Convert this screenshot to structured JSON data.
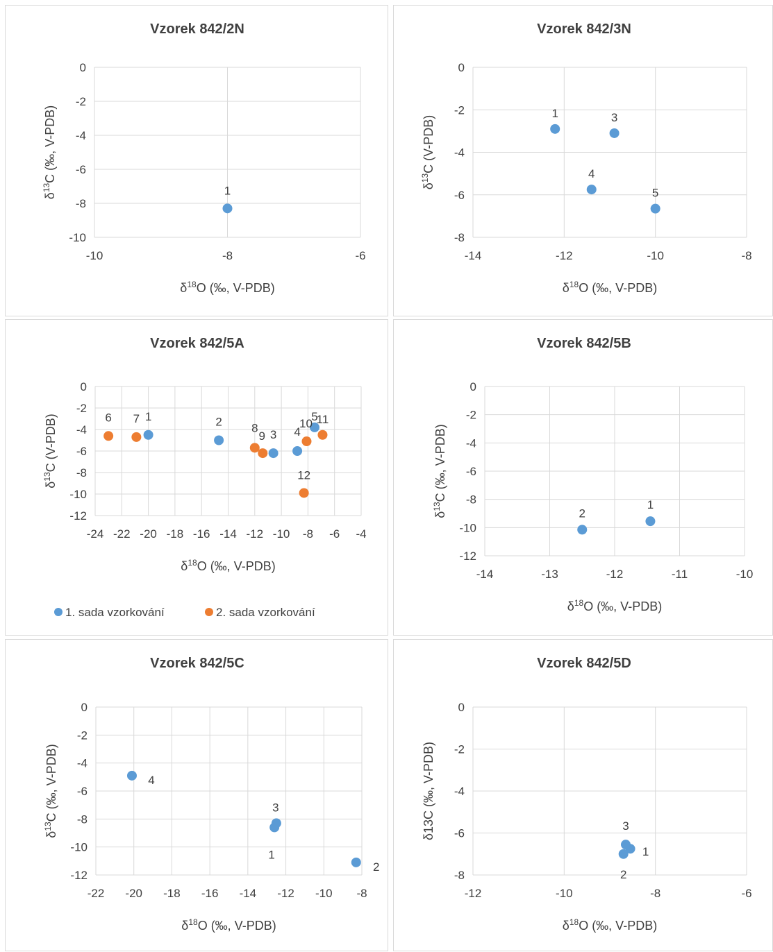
{
  "colors": {
    "series1": "#5b9bd5",
    "series2": "#ed7d31",
    "grid": "#d9d9d9",
    "text": "#404040"
  },
  "chart_data": [
    {
      "type": "scatter",
      "title": "Vzorek 842/2N",
      "xlabel": "δ18O (‰, V-PDB)",
      "ylabel": "δ13C (‰, V-PDB)",
      "xlim": [
        -10,
        -6
      ],
      "ylim": [
        -10,
        0
      ],
      "xticks": [
        -10,
        -8,
        -6
      ],
      "yticks": [
        0,
        -2,
        -4,
        -6,
        -8,
        -10
      ],
      "xtick_labels": [
        "-10",
        "-8",
        "-6"
      ],
      "ytick_labels": [
        "0",
        "-2",
        "-4",
        "-6",
        "-8",
        "-10"
      ],
      "series": [
        {
          "points": [
            {
              "x": -8.0,
              "y": -8.3,
              "label": "1"
            }
          ]
        }
      ]
    },
    {
      "type": "scatter",
      "title": "Vzorek 842/3N",
      "xlabel": "δ18O (‰, V-PDB)",
      "ylabel": "δ13C (V-PDB)",
      "xlim": [
        -14,
        -8
      ],
      "ylim": [
        -8,
        0
      ],
      "xticks": [
        -14,
        -12,
        -10,
        -8
      ],
      "yticks": [
        0,
        -2,
        -4,
        -6,
        -8
      ],
      "xtick_labels": [
        "-14",
        "-12",
        "-10",
        "-8"
      ],
      "ytick_labels": [
        "0",
        "-2",
        "-4",
        "-6",
        "-8"
      ],
      "series": [
        {
          "points": [
            {
              "x": -12.2,
              "y": -2.9,
              "label": "1"
            },
            {
              "x": -10.9,
              "y": -3.1,
              "label": "3"
            },
            {
              "x": -11.4,
              "y": -5.75,
              "label": "4"
            },
            {
              "x": -10.0,
              "y": -6.65,
              "label": "5"
            }
          ]
        }
      ]
    },
    {
      "type": "scatter",
      "title": "Vzorek 842/5A",
      "xlabel": "δ18O (‰, V-PDB)",
      "ylabel": "δ13C (V-PDB)",
      "xlim": [
        -24,
        -4
      ],
      "ylim": [
        -12,
        0
      ],
      "xticks": [
        -24,
        -22,
        -20,
        -18,
        -16,
        -14,
        -12,
        -10,
        -8,
        -6,
        -4
      ],
      "yticks": [
        0,
        -2,
        -4,
        -6,
        -8,
        -10,
        -12
      ],
      "xtick_labels": [
        "-24",
        "-22",
        "-20",
        "-18",
        "-16",
        "-14",
        "-12",
        "-10",
        "-8",
        "-6",
        "-4"
      ],
      "ytick_labels": [
        "0",
        "-2",
        "-4",
        "-6",
        "-8",
        "-10",
        "-12"
      ],
      "legend": "bottom",
      "series": [
        {
          "name": "1. sada vzorkování",
          "points": [
            {
              "x": -20.0,
              "y": -4.5,
              "label": "1"
            },
            {
              "x": -14.7,
              "y": -5.0,
              "label": "2"
            },
            {
              "x": -10.6,
              "y": -6.2,
              "label": "3"
            },
            {
              "x": -8.8,
              "y": -6.0,
              "label": "4"
            },
            {
              "x": -7.5,
              "y": -3.8,
              "label": "5"
            }
          ]
        },
        {
          "name": "2. sada vzorkování",
          "points": [
            {
              "x": -23.0,
              "y": -4.6,
              "label": "6"
            },
            {
              "x": -20.9,
              "y": -4.7,
              "label": "7"
            },
            {
              "x": -12.0,
              "y": -5.7,
              "label": "8"
            },
            {
              "x": -11.4,
              "y": -6.2,
              "label": "9"
            },
            {
              "x": -8.1,
              "y": -5.1,
              "label": "10"
            },
            {
              "x": -6.9,
              "y": -4.5,
              "label": "11"
            },
            {
              "x": -8.3,
              "y": -9.9,
              "label": "12"
            }
          ]
        }
      ]
    },
    {
      "type": "scatter",
      "title": "Vzorek 842/5B",
      "xlabel": "δ18O (‰, V-PDB)",
      "ylabel": "δ13C (‰, V-PDB)",
      "xlim": [
        -14,
        -10
      ],
      "ylim": [
        -12,
        0
      ],
      "xticks": [
        -14,
        -13,
        -12,
        -11,
        -10
      ],
      "yticks": [
        0,
        -2,
        -4,
        -6,
        -8,
        -10,
        -12
      ],
      "xtick_labels": [
        "-14",
        "-13",
        "-12",
        "-11",
        "-10"
      ],
      "ytick_labels": [
        "0",
        "-2",
        "-4",
        "-6",
        "-8",
        "-10",
        "-12"
      ],
      "series": [
        {
          "points": [
            {
              "x": -11.45,
              "y": -9.55,
              "label": "1"
            },
            {
              "x": -12.5,
              "y": -10.15,
              "label": "2"
            }
          ]
        }
      ]
    },
    {
      "type": "scatter",
      "title": "Vzorek 842/5C",
      "xlabel": "δ18O (‰, V-PDB)",
      "ylabel": "δ13C (‰, V-PDB)",
      "xlim": [
        -22,
        -8
      ],
      "ylim": [
        -12,
        0
      ],
      "xticks": [
        -22,
        -20,
        -18,
        -16,
        -14,
        -12,
        -10,
        -8
      ],
      "yticks": [
        0,
        -2,
        -4,
        -6,
        -8,
        -10,
        -12
      ],
      "xtick_labels": [
        "-22",
        "-20",
        "-18",
        "-16",
        "-14",
        "-12",
        "-10",
        "-8"
      ],
      "ytick_labels": [
        "0",
        "-2",
        "-4",
        "-6",
        "-8",
        "-10",
        "-12"
      ],
      "series": [
        {
          "points": [
            {
              "x": -12.6,
              "y": -8.6,
              "label": "1"
            },
            {
              "x": -8.3,
              "y": -11.1,
              "label": "2"
            },
            {
              "x": -12.5,
              "y": -8.3,
              "label": "3"
            },
            {
              "x": -20.1,
              "y": -4.9,
              "label": "4"
            }
          ]
        }
      ]
    },
    {
      "type": "scatter",
      "title": "Vzorek 842/5D",
      "xlabel": "δ18O (‰, V-PDB)",
      "ylabel": "δ13C (‰, V-PDB)",
      "xlim": [
        -12,
        -6
      ],
      "ylim": [
        -8,
        0
      ],
      "xticks": [
        -12,
        -10,
        -8,
        -6
      ],
      "yticks": [
        0,
        -2,
        -4,
        -6,
        -8
      ],
      "xtick_labels": [
        "-12",
        "-10",
        "-8",
        "-6"
      ],
      "ytick_labels": [
        "0",
        "-2",
        "-4",
        "-6",
        "-8"
      ],
      "series": [
        {
          "points": [
            {
              "x": -8.55,
              "y": -6.75,
              "label": "1"
            },
            {
              "x": -8.7,
              "y": -7.0,
              "label": "2"
            },
            {
              "x": -8.65,
              "y": -6.55,
              "label": "3"
            }
          ]
        }
      ]
    }
  ]
}
